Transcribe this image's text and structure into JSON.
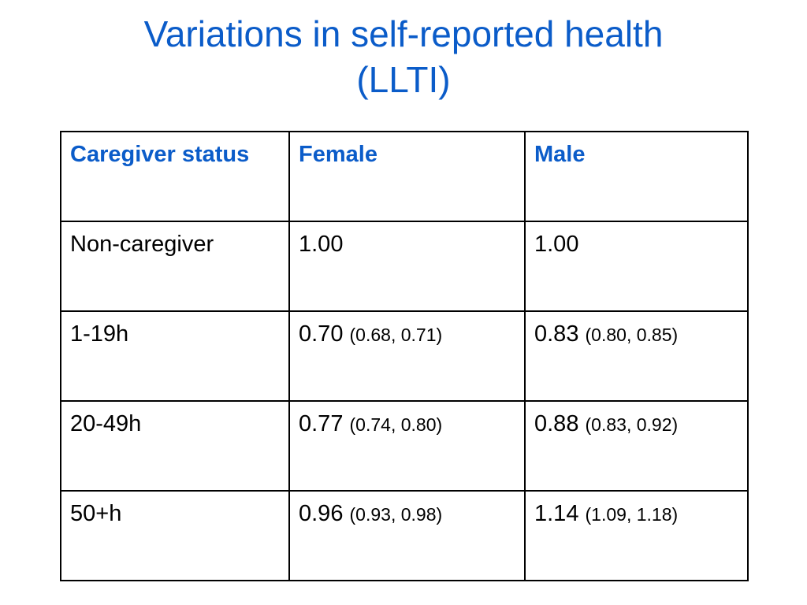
{
  "title": {
    "line1": "Variations in self-reported health",
    "line2": "(LLTI)"
  },
  "table": {
    "headers": {
      "col1": "Caregiver status",
      "col2": "Female",
      "col3": "Male"
    },
    "rows": [
      {
        "status": "Non-caregiver",
        "female": {
          "value": "1.00",
          "ci": ""
        },
        "male": {
          "value": "1.00",
          "ci": ""
        }
      },
      {
        "status": "1-19h",
        "female": {
          "value": "0.70",
          "ci": "(0.68, 0.71)"
        },
        "male": {
          "value": "0.83",
          "ci": "(0.80, 0.85)"
        }
      },
      {
        "status": "20-49h",
        "female": {
          "value": "0.77",
          "ci": "(0.74, 0.80)"
        },
        "male": {
          "value": "0.88",
          "ci": "(0.83, 0.92)"
        }
      },
      {
        "status": "50+h",
        "female": {
          "value": "0.96",
          "ci": "(0.93, 0.98)"
        },
        "male": {
          "value": "1.14",
          "ci": "(1.09, 1.18)"
        }
      }
    ]
  },
  "colors": {
    "title": "#0b5cc9",
    "header_text": "#0b5cc9",
    "border": "#000000"
  }
}
